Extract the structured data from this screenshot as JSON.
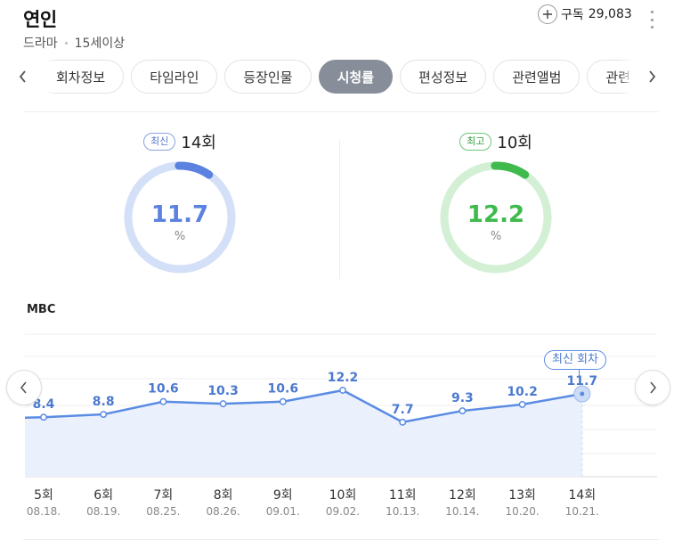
{
  "header": {
    "title": "연인",
    "genre": "드라마",
    "rating": "15세이상",
    "subscribe_label": "구독",
    "subscriber_count": "29,083"
  },
  "tabs": [
    {
      "label": "회차정보",
      "active": false
    },
    {
      "label": "타임라인",
      "active": false
    },
    {
      "label": "등장인물",
      "active": false
    },
    {
      "label": "시청률",
      "active": true
    },
    {
      "label": "편성정보",
      "active": false
    },
    {
      "label": "관련앨범",
      "active": false
    },
    {
      "label": "관련백과",
      "active": false
    }
  ],
  "gauges": {
    "latest": {
      "chip": "최신",
      "episode": "14회",
      "value": "11.7",
      "unit": "%",
      "color": "#5b82e0",
      "track": "#d4e0f8"
    },
    "highest": {
      "chip": "최고",
      "episode": "10회",
      "value": "12.2",
      "unit": "%",
      "color": "#3fba4c",
      "track": "#d3f0d5"
    }
  },
  "chart": {
    "channel": "MBC",
    "latest_badge": "최신 회차"
  },
  "chart_data": {
    "type": "area",
    "categories": [
      "5회",
      "6회",
      "7회",
      "8회",
      "9회",
      "10회",
      "11회",
      "12회",
      "13회",
      "14회"
    ],
    "dates": [
      "08.18.",
      "08.19.",
      "08.25.",
      "08.26.",
      "09.01.",
      "09.02.",
      "10.13.",
      "10.14.",
      "10.20.",
      "10.21."
    ],
    "series": [
      {
        "values": [
          8.4,
          8.8,
          10.6,
          10.3,
          10.6,
          12.2,
          7.7,
          9.3,
          10.2,
          11.7
        ]
      }
    ],
    "ylim": [
      0,
      20
    ],
    "line_color": "#5b8ce2",
    "fill_color": "#eaf1fd",
    "grid": true
  }
}
